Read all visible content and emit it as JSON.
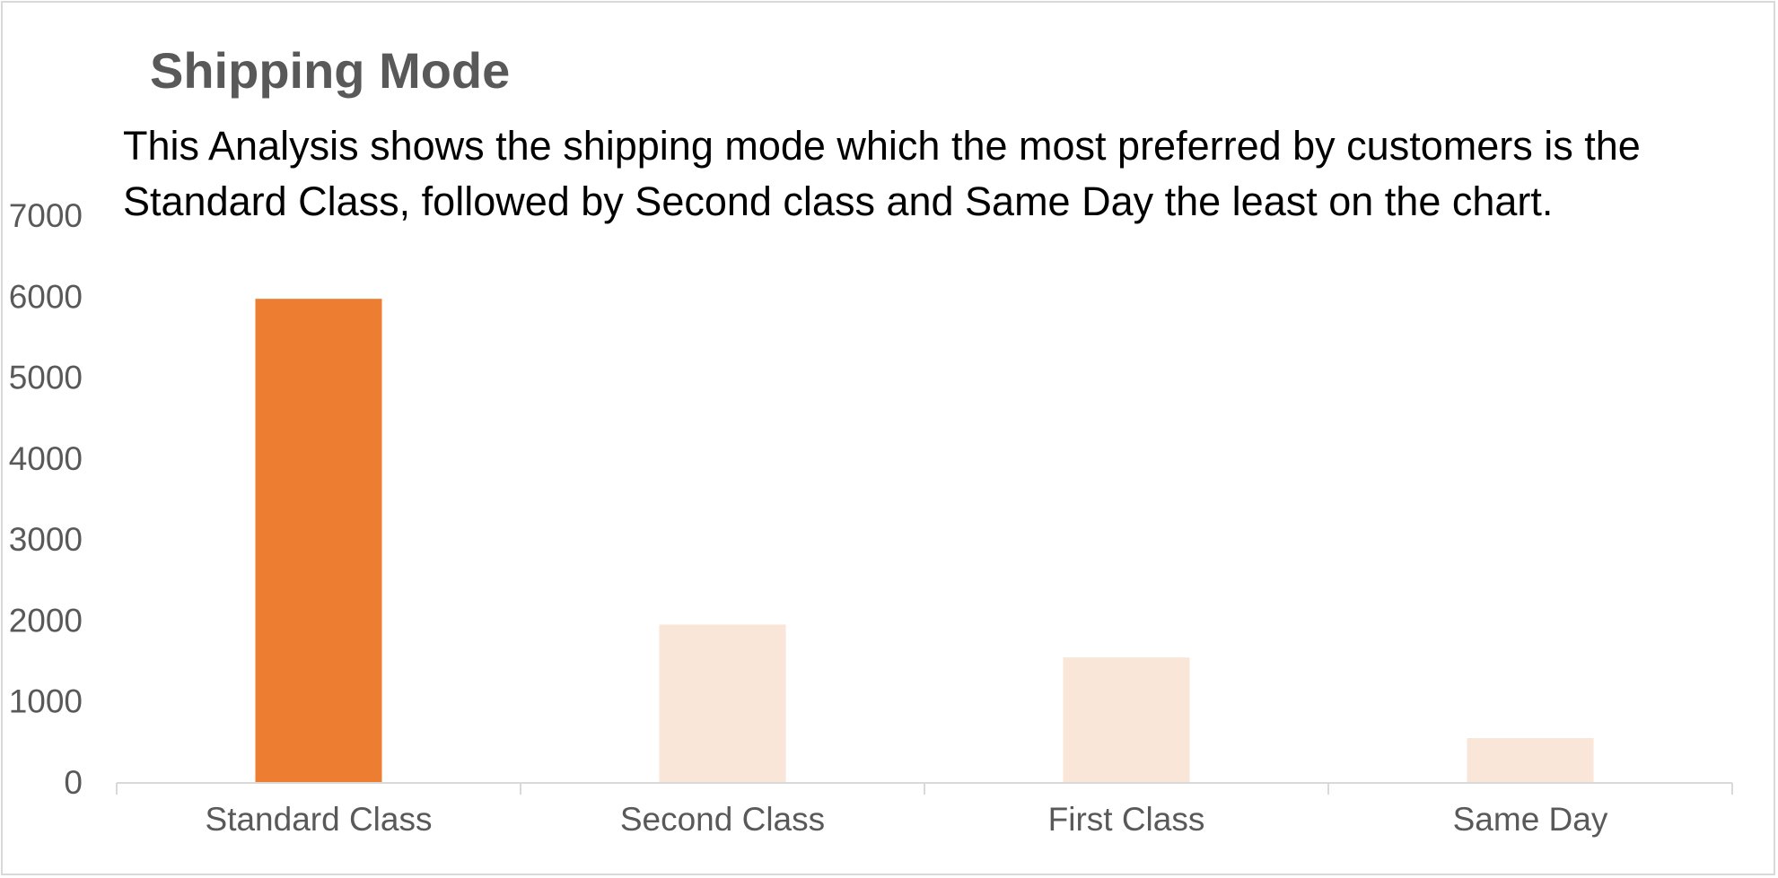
{
  "chart_data": {
    "type": "bar",
    "title": "Shipping Mode",
    "annotation": "This Analysis shows the shipping mode which the most preferred by customers is the Standard Class, followed by Second class and Same Day the least on the chart.",
    "categories": [
      "Standard Class",
      "Second Class",
      "First Class",
      "Same Day"
    ],
    "values": [
      5968,
      1945,
      1538,
      543
    ],
    "highlight_index": 0,
    "colors": {
      "highlight": "#ed7d31",
      "muted": "#fae5d9",
      "axis": "#d9d9d9",
      "text": "#595959"
    },
    "ylim": [
      0,
      7000
    ],
    "yticks": [
      "0",
      "1000",
      "2000",
      "3000",
      "4000",
      "5000",
      "6000",
      "7000"
    ],
    "xlabel": "",
    "ylabel": "",
    "grid": false,
    "legend": "none"
  }
}
